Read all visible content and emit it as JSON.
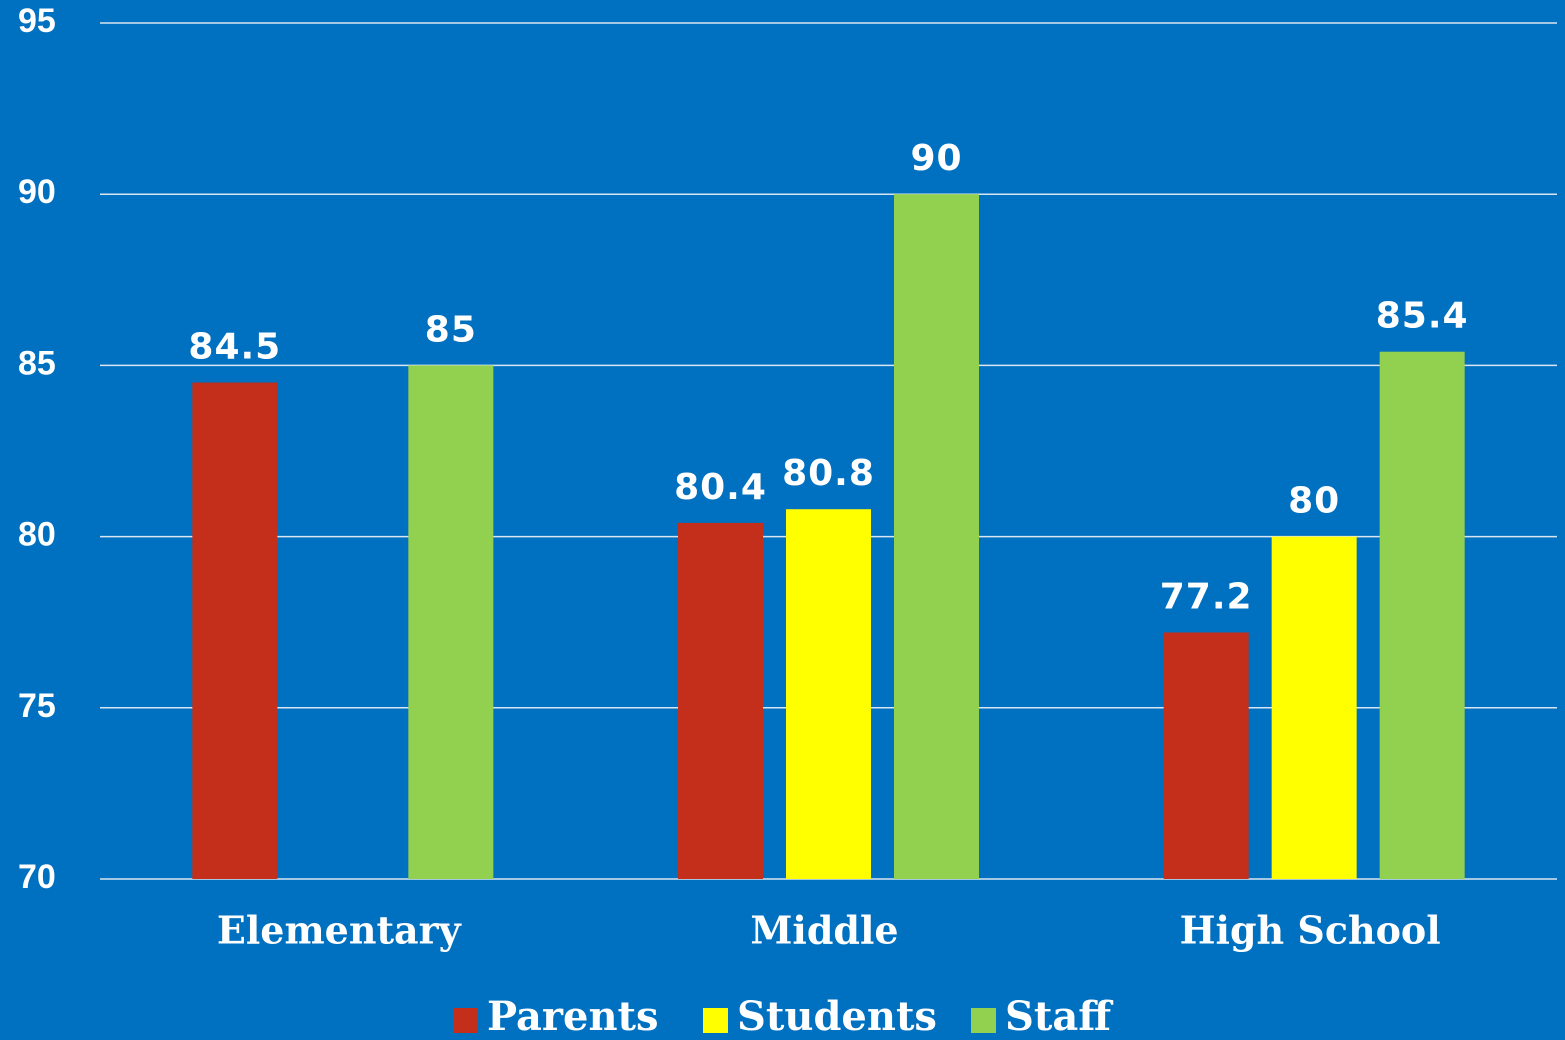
{
  "chart_data": {
    "type": "bar",
    "categories": [
      "Elementary",
      "Middle",
      "High School"
    ],
    "series": [
      {
        "name": "Parents",
        "color": "#c32f1a",
        "values": [
          84.5,
          80.4,
          77.2
        ]
      },
      {
        "name": "Students",
        "color": "#ffff00",
        "values": [
          null,
          80.8,
          80
        ]
      },
      {
        "name": "Staff",
        "color": "#92d050",
        "values": [
          85,
          90,
          85.4
        ]
      }
    ],
    "ylim": [
      70,
      95
    ],
    "yticks": [
      70,
      75,
      80,
      85,
      90,
      95
    ],
    "grid": true,
    "legend": "bottom"
  }
}
